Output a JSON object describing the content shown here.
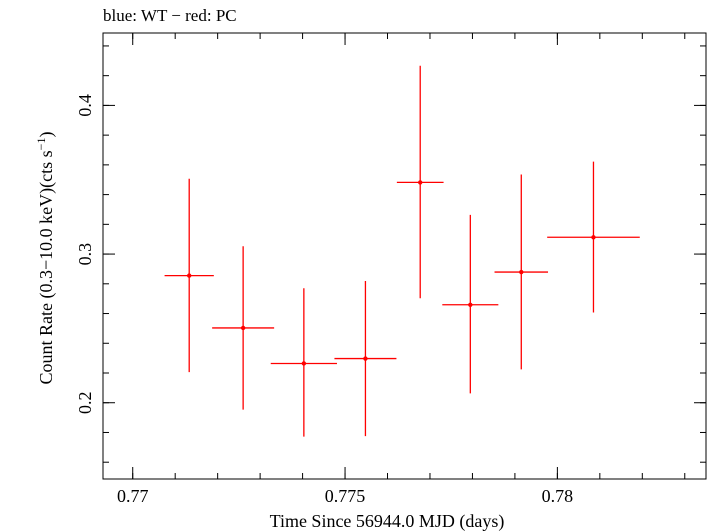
{
  "chart_data": {
    "type": "scatter",
    "title": "blue: WT − red: PC",
    "xlabel": "Time Since 56944.0 MJD (days)",
    "ylabel_main": "Count Rate (0.3−10.0 keV)(cts s",
    "ylabel_sup": "−1",
    "ylabel_close": ")",
    "xlim": [
      0.7693,
      0.7835
    ],
    "ylim": [
      0.1487,
      0.4487
    ],
    "x_ticks": [
      {
        "value": 0.77,
        "label": "0.77"
      },
      {
        "value": 0.775,
        "label": "0.775"
      },
      {
        "value": 0.78,
        "label": "0.78"
      }
    ],
    "y_ticks": [
      {
        "value": 0.2,
        "label": "0.2"
      },
      {
        "value": 0.3,
        "label": "0.3"
      },
      {
        "value": 0.4,
        "label": "0.4"
      }
    ],
    "x_minor_step": 0.001,
    "y_minor_step": 0.02,
    "colors": {
      "PC": "#ff0000",
      "WT": "#0000ff"
    },
    "series": [
      {
        "name": "PC",
        "color": "#ff0000",
        "points": [
          {
            "x": 0.77133,
            "xerr": 0.00058,
            "y": 0.2855,
            "yerr_lo": 0.0649,
            "yerr_hi": 0.0652
          },
          {
            "x": 0.7726,
            "xerr": 0.00073,
            "y": 0.2503,
            "yerr_lo": 0.0549,
            "yerr_hi": 0.055
          },
          {
            "x": 0.77403,
            "xerr": 0.00078,
            "y": 0.2264,
            "yerr_lo": 0.0492,
            "yerr_hi": 0.0506
          },
          {
            "x": 0.77548,
            "xerr": 0.00073,
            "y": 0.2297,
            "yerr_lo": 0.0522,
            "yerr_hi": 0.0522
          },
          {
            "x": 0.77677,
            "xerr": 0.00055,
            "y": 0.3482,
            "yerr_lo": 0.0779,
            "yerr_hi": 0.0785
          },
          {
            "x": 0.77795,
            "xerr": 0.00066,
            "y": 0.2659,
            "yerr_lo": 0.0596,
            "yerr_hi": 0.0605
          },
          {
            "x": 0.77915,
            "xerr": 0.00063,
            "y": 0.2879,
            "yerr_lo": 0.0655,
            "yerr_hi": 0.0656
          },
          {
            "x": 0.78085,
            "xerr": 0.00109,
            "y": 0.3113,
            "yerr_lo": 0.0506,
            "yerr_hi": 0.0509
          }
        ]
      }
    ]
  }
}
